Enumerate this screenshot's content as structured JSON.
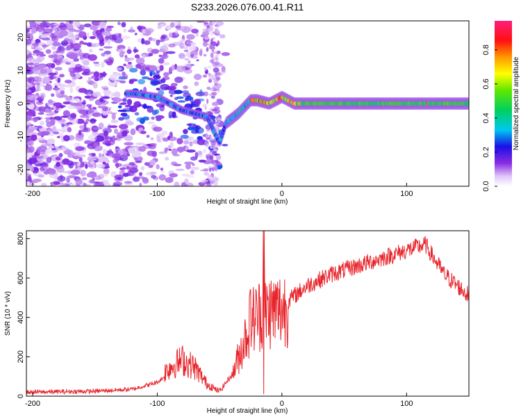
{
  "title": "S233.2026.076.00.41.R11",
  "chart_data": [
    {
      "type": "heatmap",
      "xlabel": "Height of straight line (km)",
      "ylabel": "Frequency (Hz)",
      "xlim": [
        -205,
        150
      ],
      "ylim": [
        -25,
        25
      ],
      "xticks": [
        -200,
        -100,
        0,
        100
      ],
      "yticks": [
        -20,
        -10,
        0,
        10,
        20
      ],
      "ridge": [
        {
          "x": -120,
          "y": 3
        },
        {
          "x": -100,
          "y": 2
        },
        {
          "x": -80,
          "y": -2
        },
        {
          "x": -60,
          "y": -4
        },
        {
          "x": -50,
          "y": -12
        },
        {
          "x": -45,
          "y": -6
        },
        {
          "x": -35,
          "y": -3
        },
        {
          "x": -25,
          "y": 1
        },
        {
          "x": -20,
          "y": 1
        },
        {
          "x": -10,
          "y": 0
        },
        {
          "x": 0,
          "y": 2
        },
        {
          "x": 10,
          "y": 0
        },
        {
          "x": 50,
          "y": 0
        },
        {
          "x": 100,
          "y": 0
        },
        {
          "x": 150,
          "y": 0
        }
      ],
      "colorbar": {
        "label": "Normalized spectral amplitude",
        "range": [
          0,
          0.97
        ],
        "ticks": [
          0.0,
          0.2,
          0.4,
          0.6,
          0.8
        ]
      }
    },
    {
      "type": "line",
      "xlabel": "Height of straight line (km)",
      "ylabel": "SNR (10 * v/v)",
      "xlim": [
        -205,
        150
      ],
      "ylim": [
        0,
        840
      ],
      "xticks": [
        -200,
        -100,
        0,
        100
      ],
      "yticks": [
        0,
        200,
        400,
        600,
        800
      ],
      "color": "#e8232a",
      "envelope": [
        {
          "x": -205,
          "y": 20
        },
        {
          "x": -150,
          "y": 25
        },
        {
          "x": -120,
          "y": 35
        },
        {
          "x": -100,
          "y": 70
        },
        {
          "x": -90,
          "y": 120
        },
        {
          "x": -80,
          "y": 150
        },
        {
          "x": -70,
          "y": 120
        },
        {
          "x": -60,
          "y": 50
        },
        {
          "x": -50,
          "y": 25
        },
        {
          "x": -40,
          "y": 110
        },
        {
          "x": -30,
          "y": 300
        },
        {
          "x": -25,
          "y": 400
        },
        {
          "x": -15,
          "y": 450
        },
        {
          "x": 0,
          "y": 460
        },
        {
          "x": 20,
          "y": 560
        },
        {
          "x": 40,
          "y": 620
        },
        {
          "x": 60,
          "y": 660
        },
        {
          "x": 80,
          "y": 700
        },
        {
          "x": 100,
          "y": 740
        },
        {
          "x": 115,
          "y": 770
        },
        {
          "x": 130,
          "y": 620
        },
        {
          "x": 150,
          "y": 510
        }
      ],
      "spikes": [
        {
          "x": -14,
          "y": 840
        },
        {
          "x": -25,
          "y": 540
        },
        {
          "x": -14,
          "y": 20
        }
      ]
    }
  ]
}
